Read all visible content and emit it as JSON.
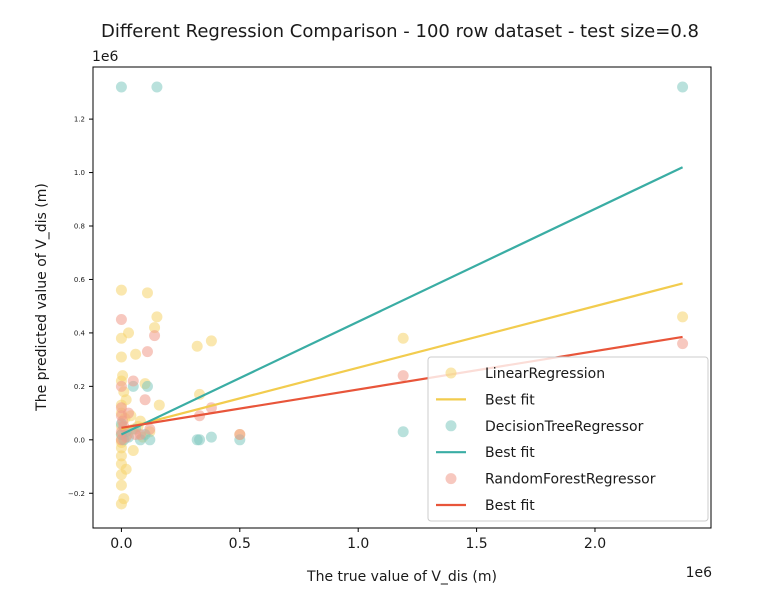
{
  "chart_data": {
    "type": "scatter",
    "title": "Different Regression Comparison - 100 row dataset - test size=0.8",
    "xlabel": "The true value of V_dis (m)",
    "ylabel": "The predicted value of V_dis (m)",
    "x_offset_text": "1e6",
    "y_offset_text": "1e6",
    "xlim": [
      -0.12,
      2.49
    ],
    "ylim": [
      -0.33,
      1.395
    ],
    "x_ticks": [
      0.0,
      0.5,
      1.0,
      1.5,
      2.0
    ],
    "x_tick_labels": [
      "0.0",
      "0.5",
      "1.0",
      "1.5",
      "2.0"
    ],
    "y_ticks": [
      -0.2,
      0.0,
      0.2,
      0.4,
      0.6,
      0.8,
      1.0,
      1.2
    ],
    "y_tick_labels": [
      "−0.2",
      "0.0",
      "0.2",
      "0.4",
      "0.6",
      "0.8",
      "1.0",
      "1.2"
    ],
    "grid": false,
    "legend_position": "lower-right",
    "legend_entries": [
      {
        "label": "LinearRegression",
        "kind": "marker",
        "color": "#F5D36B"
      },
      {
        "label": "Best fit",
        "kind": "line",
        "color": "#F2CC4E"
      },
      {
        "label": "DecisionTreeRegressor",
        "kind": "marker",
        "color": "#7FC8C0"
      },
      {
        "label": "Best fit",
        "kind": "line",
        "color": "#3AADA4"
      },
      {
        "label": "RandomForestRegressor",
        "kind": "marker",
        "color": "#F19A8A"
      },
      {
        "label": "Best fit",
        "kind": "line",
        "color": "#E8553A"
      }
    ],
    "series": [
      {
        "name": "LinearRegression",
        "color": "#F5D36B",
        "x": [
          0.0,
          0.0,
          0.0,
          0.0,
          0.0,
          0.0,
          0.0,
          0.0,
          0.0,
          0.0,
          0.0,
          0.0,
          0.0,
          0.0,
          0.0,
          0.0,
          0.005,
          0.01,
          0.01,
          0.015,
          0.02,
          0.02,
          0.025,
          0.03,
          0.04,
          0.05,
          0.05,
          0.06,
          0.07,
          0.08,
          0.09,
          0.1,
          0.11,
          0.12,
          0.14,
          0.15,
          0.16,
          0.32,
          0.33,
          0.38,
          0.5,
          1.19,
          2.37
        ],
        "y": [
          0.56,
          0.38,
          0.31,
          0.22,
          0.13,
          0.05,
          0.0,
          -0.03,
          -0.06,
          -0.09,
          -0.13,
          -0.17,
          -0.24,
          0.1,
          0.02,
          -0.01,
          0.24,
          0.18,
          -0.22,
          0.08,
          0.15,
          -0.11,
          0.02,
          0.4,
          0.09,
          0.04,
          -0.04,
          0.32,
          0.05,
          0.07,
          0.01,
          0.21,
          0.55,
          0.03,
          0.42,
          0.46,
          0.13,
          0.35,
          0.17,
          0.37,
          0.02,
          0.38,
          0.46
        ]
      },
      {
        "name": "DecisionTreeRegressor",
        "color": "#7FC8C0",
        "x": [
          0.0,
          0.15,
          2.37,
          0.0,
          0.0,
          0.01,
          0.02,
          0.03,
          0.05,
          0.06,
          0.08,
          0.1,
          0.11,
          0.12,
          0.32,
          0.33,
          0.38,
          0.5,
          1.19
        ],
        "y": [
          1.32,
          1.32,
          1.32,
          0.02,
          0.06,
          0.0,
          0.03,
          0.01,
          0.2,
          0.04,
          0.0,
          0.02,
          0.2,
          0.0,
          0.0,
          0.0,
          0.01,
          0.0,
          0.03
        ]
      },
      {
        "name": "RandomForestRegressor",
        "color": "#F19A8A",
        "x": [
          0.0,
          0.0,
          0.0,
          0.0,
          0.0,
          0.0,
          0.005,
          0.01,
          0.02,
          0.03,
          0.05,
          0.06,
          0.08,
          0.1,
          0.11,
          0.12,
          0.14,
          0.33,
          0.38,
          0.5,
          1.19,
          2.37
        ],
        "y": [
          0.45,
          0.2,
          0.12,
          0.09,
          0.03,
          0.0,
          0.07,
          0.05,
          0.01,
          0.1,
          0.22,
          0.02,
          0.02,
          0.15,
          0.33,
          0.04,
          0.39,
          0.09,
          0.12,
          0.02,
          0.24,
          0.36
        ]
      }
    ],
    "best_fit_lines": [
      {
        "name": "Best fit",
        "color": "#F2CC4E",
        "x": [
          0.0,
          2.37
        ],
        "y": [
          0.04,
          0.585
        ]
      },
      {
        "name": "Best fit",
        "color": "#3AADA4",
        "x": [
          0.0,
          2.37
        ],
        "y": [
          0.02,
          1.02
        ]
      },
      {
        "name": "Best fit",
        "color": "#E8553A",
        "x": [
          0.0,
          2.37
        ],
        "y": [
          0.045,
          0.385
        ]
      }
    ]
  }
}
